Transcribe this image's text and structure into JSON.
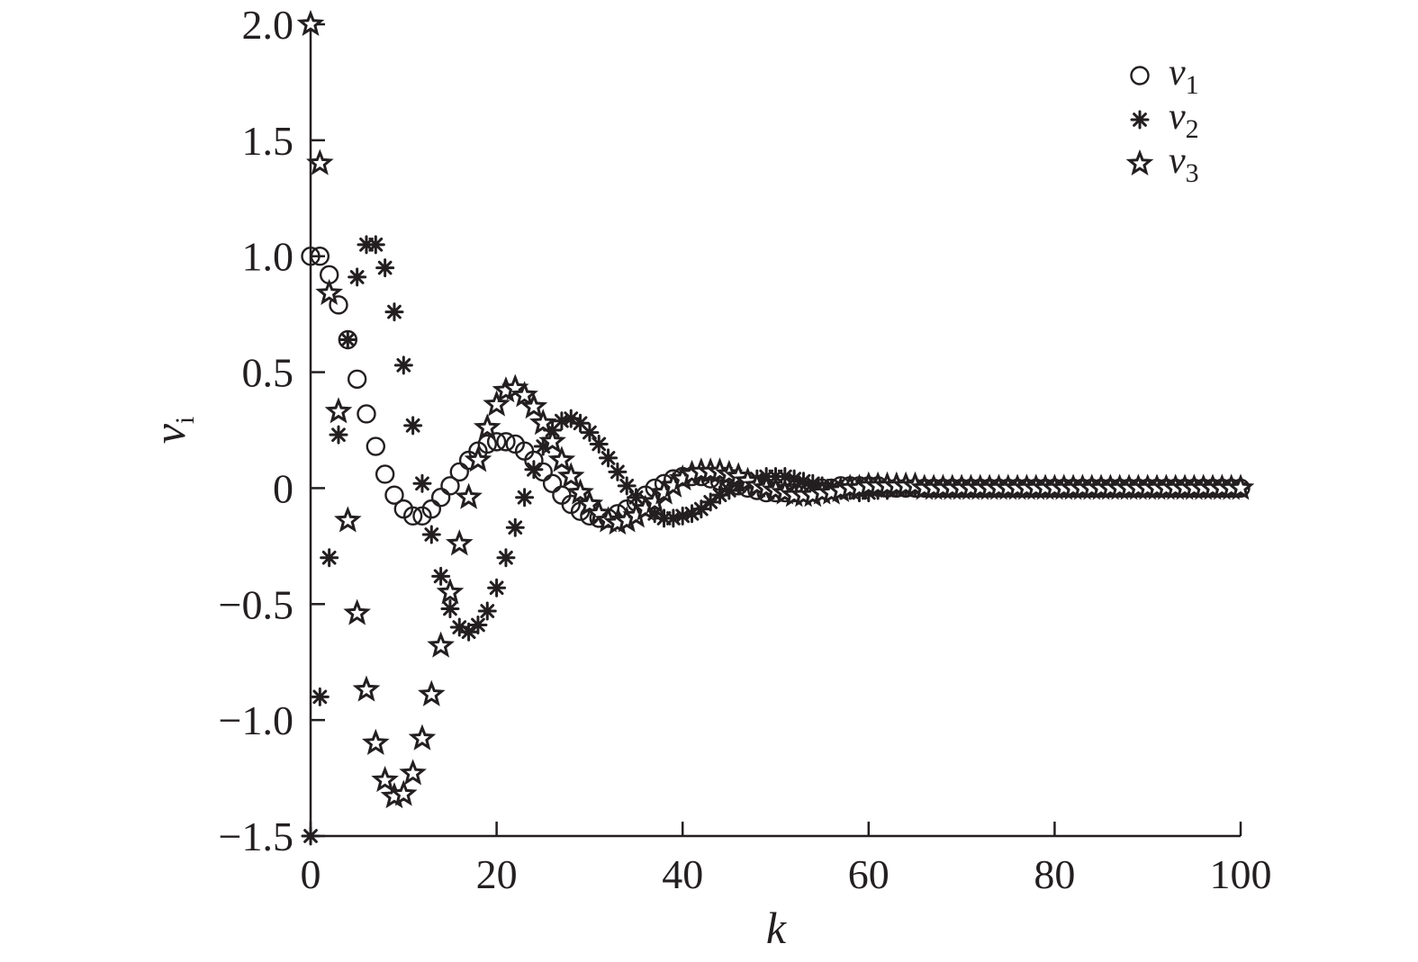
{
  "chart_data": {
    "type": "scatter",
    "title": "",
    "xlabel": "k",
    "ylabel": {
      "base": "v",
      "sub": "i"
    },
    "xlim": [
      0,
      100
    ],
    "ylim": [
      -1.5,
      2.0
    ],
    "x_ticks": [
      0,
      20,
      40,
      60,
      80,
      100
    ],
    "x_tick_labels": [
      "0",
      "20",
      "40",
      "60",
      "80",
      "100"
    ],
    "y_ticks": [
      2.0,
      1.5,
      1.0,
      0.5,
      0,
      -0.5,
      -1.0,
      -1.5
    ],
    "y_tick_labels": [
      "2.0",
      "1.5",
      "1.0",
      "0.5",
      "0",
      "−0.5",
      "−1.0",
      "−1.5"
    ],
    "grid": false,
    "legend_position": "top-right",
    "series": [
      {
        "name": "v1",
        "name_base": "v",
        "name_sub": "1",
        "marker": "circle",
        "x": [
          0,
          1,
          2,
          3,
          4,
          5,
          6,
          7,
          8,
          9,
          10,
          11,
          12,
          13,
          14,
          15,
          16,
          17,
          18,
          19,
          20,
          21,
          22,
          23,
          24,
          25,
          26,
          27,
          28,
          29,
          30,
          31,
          32,
          33,
          34,
          35,
          36,
          37,
          38,
          39,
          40,
          41,
          42,
          43,
          44,
          45,
          46,
          47,
          48,
          49,
          50,
          51,
          52,
          53,
          54,
          55,
          56,
          57,
          58,
          59,
          60,
          61,
          62,
          63,
          64,
          65,
          66,
          67,
          68,
          69,
          70,
          71,
          72,
          73,
          74,
          75,
          76,
          77,
          78,
          79,
          80,
          81,
          82,
          83,
          84,
          85,
          86,
          87,
          88,
          89,
          90,
          91,
          92,
          93,
          94,
          95,
          96,
          97,
          98,
          99,
          100
        ],
        "y": [
          1.0,
          1.0,
          0.92,
          0.79,
          0.64,
          0.47,
          0.32,
          0.18,
          0.06,
          -0.03,
          -0.09,
          -0.12,
          -0.12,
          -0.09,
          -0.04,
          0.01,
          0.07,
          0.12,
          0.16,
          0.19,
          0.2,
          0.2,
          0.19,
          0.16,
          0.12,
          0.07,
          0.02,
          -0.03,
          -0.07,
          -0.1,
          -0.12,
          -0.13,
          -0.13,
          -0.11,
          -0.09,
          -0.06,
          -0.03,
          0.0,
          0.02,
          0.04,
          0.05,
          0.05,
          0.05,
          0.04,
          0.03,
          0.02,
          0.01,
          0.0,
          -0.01,
          -0.02,
          -0.02,
          -0.02,
          -0.02,
          -0.01,
          -0.01,
          0.0,
          0.0,
          0.01,
          0.01,
          0.01,
          0.01,
          0.01,
          0.0,
          0.0,
          0.0,
          0.0,
          0.0,
          0.0,
          0.0,
          0.0,
          0.0,
          0.0,
          0.0,
          0.0,
          0.0,
          0.0,
          0.0,
          0.0,
          0.0,
          0.0,
          0.0,
          0.0,
          0.0,
          0.0,
          0.0,
          0.0,
          0.0,
          0.0,
          0.0,
          0.0,
          0.0,
          0.0,
          0.0,
          0.0,
          0.0,
          0.0,
          0.0,
          0.0,
          0.0,
          0.0,
          0.0
        ]
      },
      {
        "name": "v2",
        "name_base": "v",
        "name_sub": "2",
        "marker": "asterisk",
        "x": [
          0,
          1,
          2,
          3,
          4,
          5,
          6,
          7,
          8,
          9,
          10,
          11,
          12,
          13,
          14,
          15,
          16,
          17,
          18,
          19,
          20,
          21,
          22,
          23,
          24,
          25,
          26,
          27,
          28,
          29,
          30,
          31,
          32,
          33,
          34,
          35,
          36,
          37,
          38,
          39,
          40,
          41,
          42,
          43,
          44,
          45,
          46,
          47,
          48,
          49,
          50,
          51,
          52,
          53,
          54,
          55,
          56,
          57,
          58,
          59,
          60,
          61,
          62,
          63,
          64,
          65,
          66,
          67,
          68,
          69,
          70,
          71,
          72,
          73,
          74,
          75,
          76,
          77,
          78,
          79,
          80,
          81,
          82,
          83,
          84,
          85,
          86,
          87,
          88,
          89,
          90,
          91,
          92,
          93,
          94,
          95,
          96,
          97,
          98,
          99,
          100
        ],
        "y": [
          -1.5,
          -0.9,
          -0.3,
          0.23,
          0.64,
          0.91,
          1.05,
          1.05,
          0.95,
          0.76,
          0.53,
          0.27,
          0.02,
          -0.2,
          -0.38,
          -0.52,
          -0.6,
          -0.62,
          -0.59,
          -0.53,
          -0.43,
          -0.3,
          -0.17,
          -0.04,
          0.08,
          0.18,
          0.25,
          0.29,
          0.3,
          0.28,
          0.24,
          0.19,
          0.13,
          0.07,
          0.01,
          -0.04,
          -0.08,
          -0.11,
          -0.13,
          -0.13,
          -0.12,
          -0.11,
          -0.09,
          -0.06,
          -0.03,
          -0.01,
          0.01,
          0.03,
          0.04,
          0.05,
          0.05,
          0.05,
          0.04,
          0.03,
          0.02,
          0.01,
          0.0,
          -0.01,
          -0.01,
          -0.02,
          -0.02,
          -0.01,
          -0.01,
          0.0,
          0.0,
          0.0,
          0.0,
          0.0,
          0.0,
          0.0,
          0.0,
          0.0,
          0.0,
          0.0,
          0.0,
          0.0,
          0.0,
          0.0,
          0.0,
          0.0,
          0.0,
          0.0,
          0.0,
          0.0,
          0.0,
          0.0,
          0.0,
          0.0,
          0.0,
          0.0,
          0.0,
          0.0,
          0.0,
          0.0,
          0.0,
          0.0,
          0.0,
          0.0,
          0.0,
          0.0,
          0.0
        ]
      },
      {
        "name": "v3",
        "name_base": "v",
        "name_sub": "3",
        "marker": "star",
        "x": [
          0,
          1,
          2,
          3,
          4,
          5,
          6,
          7,
          8,
          9,
          10,
          11,
          12,
          13,
          14,
          15,
          16,
          17,
          18,
          19,
          20,
          21,
          22,
          23,
          24,
          25,
          26,
          27,
          28,
          29,
          30,
          31,
          32,
          33,
          34,
          35,
          36,
          37,
          38,
          39,
          40,
          41,
          42,
          43,
          44,
          45,
          46,
          47,
          48,
          49,
          50,
          51,
          52,
          53,
          54,
          55,
          56,
          57,
          58,
          59,
          60,
          61,
          62,
          63,
          64,
          65,
          66,
          67,
          68,
          69,
          70,
          71,
          72,
          73,
          74,
          75,
          76,
          77,
          78,
          79,
          80,
          81,
          82,
          83,
          84,
          85,
          86,
          87,
          88,
          89,
          90,
          91,
          92,
          93,
          94,
          95,
          96,
          97,
          98,
          99,
          100
        ],
        "y": [
          2.0,
          1.4,
          0.84,
          0.33,
          -0.14,
          -0.54,
          -0.87,
          -1.1,
          -1.26,
          -1.33,
          -1.32,
          -1.23,
          -1.08,
          -0.89,
          -0.68,
          -0.45,
          -0.24,
          -0.04,
          0.12,
          0.26,
          0.36,
          0.42,
          0.43,
          0.4,
          0.35,
          0.28,
          0.2,
          0.12,
          0.05,
          -0.02,
          -0.07,
          -0.11,
          -0.14,
          -0.15,
          -0.14,
          -0.12,
          -0.09,
          -0.06,
          -0.02,
          0.01,
          0.04,
          0.06,
          0.07,
          0.07,
          0.07,
          0.06,
          0.05,
          0.03,
          0.01,
          0.0,
          -0.01,
          -0.02,
          -0.03,
          -0.03,
          -0.03,
          -0.02,
          -0.02,
          -0.01,
          0.0,
          0.0,
          0.01,
          0.01,
          0.01,
          0.01,
          0.01,
          0.01,
          0.0,
          0.0,
          0.0,
          0.0,
          0.0,
          0.0,
          0.0,
          0.0,
          0.0,
          0.0,
          0.0,
          0.0,
          0.0,
          0.0,
          0.0,
          0.0,
          0.0,
          0.0,
          0.0,
          0.0,
          0.0,
          0.0,
          0.0,
          0.0,
          0.0,
          0.0,
          0.0,
          0.0,
          0.0,
          0.0,
          0.0,
          0.0,
          0.0,
          0.0,
          0.0
        ]
      }
    ]
  }
}
